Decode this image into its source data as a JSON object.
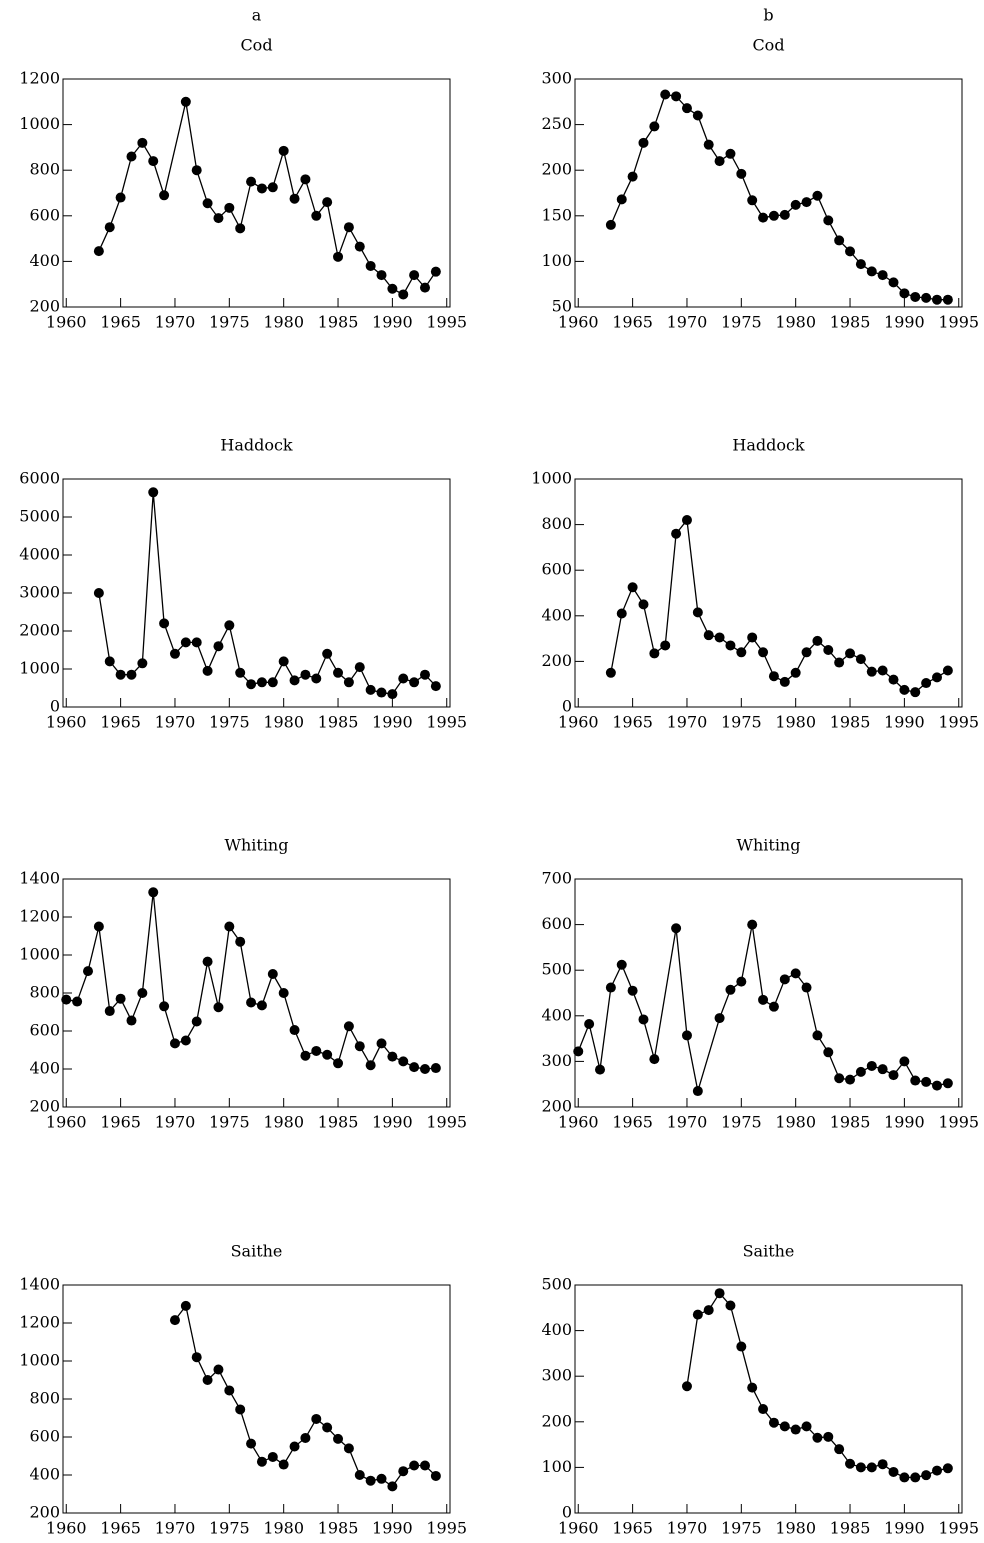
{
  "chart_data": [
    {
      "type": "line",
      "panel": "a",
      "title": "Cod",
      "color": "#000000",
      "x": [
        1963,
        1964,
        1965,
        1966,
        1967,
        1968,
        1969,
        1971,
        1972,
        1973,
        1974,
        1975,
        1976,
        1977,
        1978,
        1979,
        1980,
        1981,
        1982,
        1983,
        1984,
        1985,
        1986,
        1987,
        1988,
        1989,
        1990,
        1991,
        1992,
        1993,
        1994
      ],
      "values": [
        445,
        550,
        680,
        860,
        920,
        840,
        690,
        1100,
        800,
        655,
        590,
        635,
        545,
        750,
        720,
        725,
        885,
        675,
        760,
        600,
        660,
        420,
        550,
        465,
        380,
        340,
        280,
        255,
        340,
        285,
        355
      ],
      "xlim": [
        1959.7,
        1995.3
      ],
      "xticks": [
        1960,
        1965,
        1970,
        1975,
        1980,
        1985,
        1990,
        1995
      ],
      "ylim": [
        200,
        1200
      ],
      "yticks": [
        200,
        400,
        600,
        800,
        1000,
        1200
      ]
    },
    {
      "type": "line",
      "panel": "b",
      "title": "Cod",
      "color": "#000000",
      "x": [
        1963,
        1964,
        1965,
        1966,
        1967,
        1968,
        1969,
        1970,
        1971,
        1972,
        1973,
        1974,
        1975,
        1976,
        1977,
        1978,
        1979,
        1980,
        1981,
        1982,
        1983,
        1984,
        1985,
        1986,
        1987,
        1988,
        1989,
        1990,
        1991,
        1992,
        1993,
        1994
      ],
      "values": [
        140,
        168,
        193,
        230,
        248,
        283,
        281,
        268,
        260,
        228,
        210,
        218,
        196,
        167,
        148,
        150,
        151,
        162,
        165,
        172,
        145,
        123,
        111,
        97,
        89,
        85,
        77,
        65,
        61,
        60,
        58,
        58
      ],
      "xlim": [
        1959.7,
        1995.3
      ],
      "xticks": [
        1960,
        1965,
        1970,
        1975,
        1980,
        1985,
        1990,
        1995
      ],
      "ylim": [
        50,
        300
      ],
      "yticks": [
        50,
        100,
        150,
        200,
        250,
        300
      ]
    },
    {
      "type": "line",
      "title": "Haddock",
      "color": "#000000",
      "x": [
        1963,
        1964,
        1965,
        1966,
        1967,
        1968,
        1969,
        1970,
        1971,
        1972,
        1973,
        1974,
        1975,
        1976,
        1977,
        1978,
        1979,
        1980,
        1981,
        1982,
        1983,
        1984,
        1985,
        1986,
        1987,
        1988,
        1989,
        1990,
        1991,
        1992,
        1993,
        1994
      ],
      "values": [
        3000,
        1200,
        850,
        850,
        1150,
        5650,
        2200,
        1400,
        1700,
        1700,
        950,
        1600,
        2150,
        900,
        600,
        650,
        650,
        1200,
        700,
        850,
        750,
        1400,
        900,
        650,
        1050,
        450,
        380,
        340,
        750,
        650,
        850,
        550
      ],
      "xlim": [
        1959.7,
        1995.3
      ],
      "xticks": [
        1960,
        1965,
        1970,
        1975,
        1980,
        1985,
        1990,
        1995
      ],
      "ylim": [
        0,
        6000
      ],
      "yticks": [
        0,
        1000,
        2000,
        3000,
        4000,
        5000,
        6000
      ]
    },
    {
      "type": "line",
      "title": "Haddock",
      "color": "#000000",
      "x": [
        1963,
        1964,
        1965,
        1966,
        1967,
        1968,
        1969,
        1970,
        1971,
        1972,
        1973,
        1974,
        1975,
        1976,
        1977,
        1978,
        1979,
        1980,
        1981,
        1982,
        1983,
        1984,
        1985,
        1986,
        1987,
        1988,
        1989,
        1990,
        1991,
        1992,
        1993,
        1994
      ],
      "values": [
        150,
        410,
        525,
        450,
        235,
        270,
        760,
        820,
        415,
        315,
        305,
        270,
        240,
        305,
        240,
        135,
        110,
        150,
        240,
        290,
        250,
        195,
        235,
        210,
        155,
        160,
        120,
        75,
        65,
        105,
        130,
        160
      ],
      "xlim": [
        1959.7,
        1995.3
      ],
      "xticks": [
        1960,
        1965,
        1970,
        1975,
        1980,
        1985,
        1990,
        1995
      ],
      "ylim": [
        0,
        1000
      ],
      "yticks": [
        0,
        200,
        400,
        600,
        800,
        1000
      ]
    },
    {
      "type": "line",
      "title": "Whiting",
      "color": "#000000",
      "x": [
        1960,
        1961,
        1962,
        1963,
        1964,
        1965,
        1966,
        1967,
        1968,
        1969,
        1970,
        1971,
        1972,
        1973,
        1974,
        1975,
        1976,
        1977,
        1978,
        1979,
        1980,
        1981,
        1982,
        1983,
        1984,
        1985,
        1986,
        1987,
        1988,
        1989,
        1990,
        1991,
        1992,
        1993,
        1994
      ],
      "values": [
        765,
        755,
        915,
        1150,
        705,
        770,
        655,
        800,
        1330,
        730,
        535,
        550,
        650,
        965,
        725,
        1150,
        1070,
        750,
        735,
        900,
        800,
        605,
        470,
        495,
        475,
        430,
        625,
        520,
        420,
        535,
        465,
        440,
        410,
        400,
        405
      ],
      "xlim": [
        1959.7,
        1995.3
      ],
      "xticks": [
        1960,
        1965,
        1970,
        1975,
        1980,
        1985,
        1990,
        1995
      ],
      "ylim": [
        200,
        1400
      ],
      "yticks": [
        200,
        400,
        600,
        800,
        1000,
        1200,
        1400
      ]
    },
    {
      "type": "line",
      "title": "Whiting",
      "color": "#000000",
      "x": [
        1960,
        1961,
        1962,
        1963,
        1964,
        1965,
        1966,
        1967,
        1969,
        1970,
        1971,
        1973,
        1974,
        1975,
        1976,
        1977,
        1978,
        1979,
        1980,
        1981,
        1982,
        1983,
        1984,
        1985,
        1986,
        1987,
        1988,
        1989,
        1990,
        1991,
        1992,
        1993,
        1994
      ],
      "values": [
        322,
        382,
        282,
        462,
        512,
        455,
        392,
        305,
        592,
        357,
        235,
        395,
        457,
        475,
        600,
        435,
        420,
        480,
        493,
        462,
        357,
        320,
        263,
        260,
        277,
        290,
        283,
        270,
        300,
        258,
        255,
        247,
        252
      ],
      "xlim": [
        1959.7,
        1995.3
      ],
      "xticks": [
        1960,
        1965,
        1970,
        1975,
        1980,
        1985,
        1990,
        1995
      ],
      "ylim": [
        200,
        700
      ],
      "yticks": [
        200,
        300,
        400,
        500,
        600,
        700
      ]
    },
    {
      "type": "line",
      "title": "Saithe",
      "color": "#000000",
      "x": [
        1970,
        1971,
        1972,
        1973,
        1974,
        1975,
        1976,
        1977,
        1978,
        1979,
        1980,
        1981,
        1982,
        1983,
        1984,
        1985,
        1986,
        1987,
        1988,
        1989,
        1990,
        1991,
        1992,
        1993,
        1994
      ],
      "values": [
        1215,
        1290,
        1020,
        900,
        955,
        845,
        745,
        565,
        470,
        495,
        455,
        550,
        595,
        695,
        650,
        590,
        540,
        400,
        370,
        380,
        340,
        420,
        450,
        450,
        395
      ],
      "xlim": [
        1959.7,
        1995.3
      ],
      "xticks": [
        1960,
        1965,
        1970,
        1975,
        1980,
        1985,
        1990,
        1995
      ],
      "ylim": [
        200,
        1400
      ],
      "yticks": [
        200,
        400,
        600,
        800,
        1000,
        1200,
        1400
      ]
    },
    {
      "type": "line",
      "title": "Saithe",
      "color": "#000000",
      "x": [
        1970,
        1971,
        1972,
        1973,
        1974,
        1975,
        1976,
        1977,
        1978,
        1979,
        1980,
        1981,
        1982,
        1983,
        1984,
        1985,
        1986,
        1987,
        1988,
        1989,
        1990,
        1991,
        1992,
        1993,
        1994
      ],
      "values": [
        278,
        435,
        445,
        482,
        455,
        365,
        275,
        228,
        198,
        190,
        183,
        190,
        165,
        167,
        140,
        108,
        100,
        100,
        107,
        90,
        78,
        78,
        83,
        93,
        98
      ],
      "xlim": [
        1959.7,
        1995.3
      ],
      "xticks": [
        1960,
        1965,
        1970,
        1975,
        1980,
        1985,
        1990,
        1995
      ],
      "ylim": [
        0,
        500
      ],
      "yticks": [
        0,
        100,
        200,
        300,
        400,
        500
      ]
    }
  ]
}
